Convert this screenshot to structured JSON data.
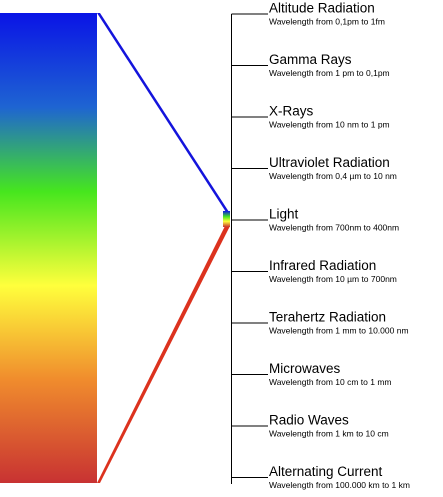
{
  "bands": [
    {
      "name": "Altitude Radiation",
      "range": "Wavelength from 0,1pm to 1fm"
    },
    {
      "name": "Gamma Rays",
      "range": "Wavelength from 1 pm to 0,1pm"
    },
    {
      "name": "X-Rays",
      "range": "Wavelength from 10 nm to 1 pm"
    },
    {
      "name": "Ultraviolet Radiation",
      "range": "Wavelength from 0,4 µm to 10 nm"
    },
    {
      "name": "Light",
      "range": "Wavelength from 700nm to 400nm"
    },
    {
      "name": "Infrared Radiation",
      "range": "Wavelength from 10 µm to 700nm"
    },
    {
      "name": "Terahertz Radiation",
      "range": "Wavelength from 1 mm to 10.000 nm"
    },
    {
      "name": "Microwaves",
      "range": "Wavelength from 10 cm to 1 mm"
    },
    {
      "name": "Radio Waves",
      "range": "Wavelength from 1 km to 10 cm"
    },
    {
      "name": "Alternating Current",
      "range": "Wavelength from 100.000 km to 1 km"
    }
  ],
  "colors": {
    "violet_end": "#0a14e6",
    "blue": "#1e64d2",
    "green": "#46e61e",
    "yellow": "#ffff3c",
    "orange": "#f08c2d",
    "red_end": "#c83232",
    "upper_connector": "#1414dc",
    "lower_connector": "#dc321e"
  }
}
